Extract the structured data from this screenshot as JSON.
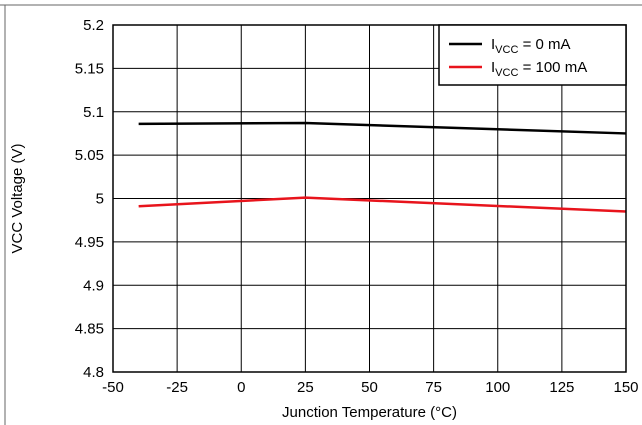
{
  "chart_data": {
    "type": "line",
    "title": "",
    "xlabel": "Junction Temperature (°C)",
    "ylabel": "VCC Voltage (V)",
    "xlim": [
      -50,
      150
    ],
    "ylim": [
      4.8,
      5.2
    ],
    "x_ticks": [
      -50,
      -25,
      0,
      25,
      50,
      75,
      100,
      125,
      150
    ],
    "y_ticks": [
      4.8,
      4.85,
      4.9,
      4.95,
      5.0,
      5.05,
      5.1,
      5.15,
      5.2
    ],
    "x_tick_labels": [
      "-50",
      "-25",
      "0",
      "25",
      "50",
      "75",
      "100",
      "125",
      "150"
    ],
    "y_tick_labels": [
      "4.8",
      "4.85",
      "4.9",
      "4.95",
      "5",
      "5.05",
      "5.1",
      "5.15",
      "5.2"
    ],
    "grid": true,
    "legend_position": "top-right",
    "series": [
      {
        "name": "I_VCC = 0 mA",
        "label_main": "I",
        "label_sub": "VCC",
        "label_rest": " = 0 mA",
        "color": "#000000",
        "x": [
          -40,
          25,
          150
        ],
        "y": [
          5.086,
          5.087,
          5.075
        ]
      },
      {
        "name": "I_VCC = 100 mA",
        "label_main": "I",
        "label_sub": "VCC",
        "label_rest": " = 100 mA",
        "color": "#e8141c",
        "x": [
          -40,
          25,
          150
        ],
        "y": [
          4.991,
          5.001,
          4.985
        ]
      }
    ]
  }
}
